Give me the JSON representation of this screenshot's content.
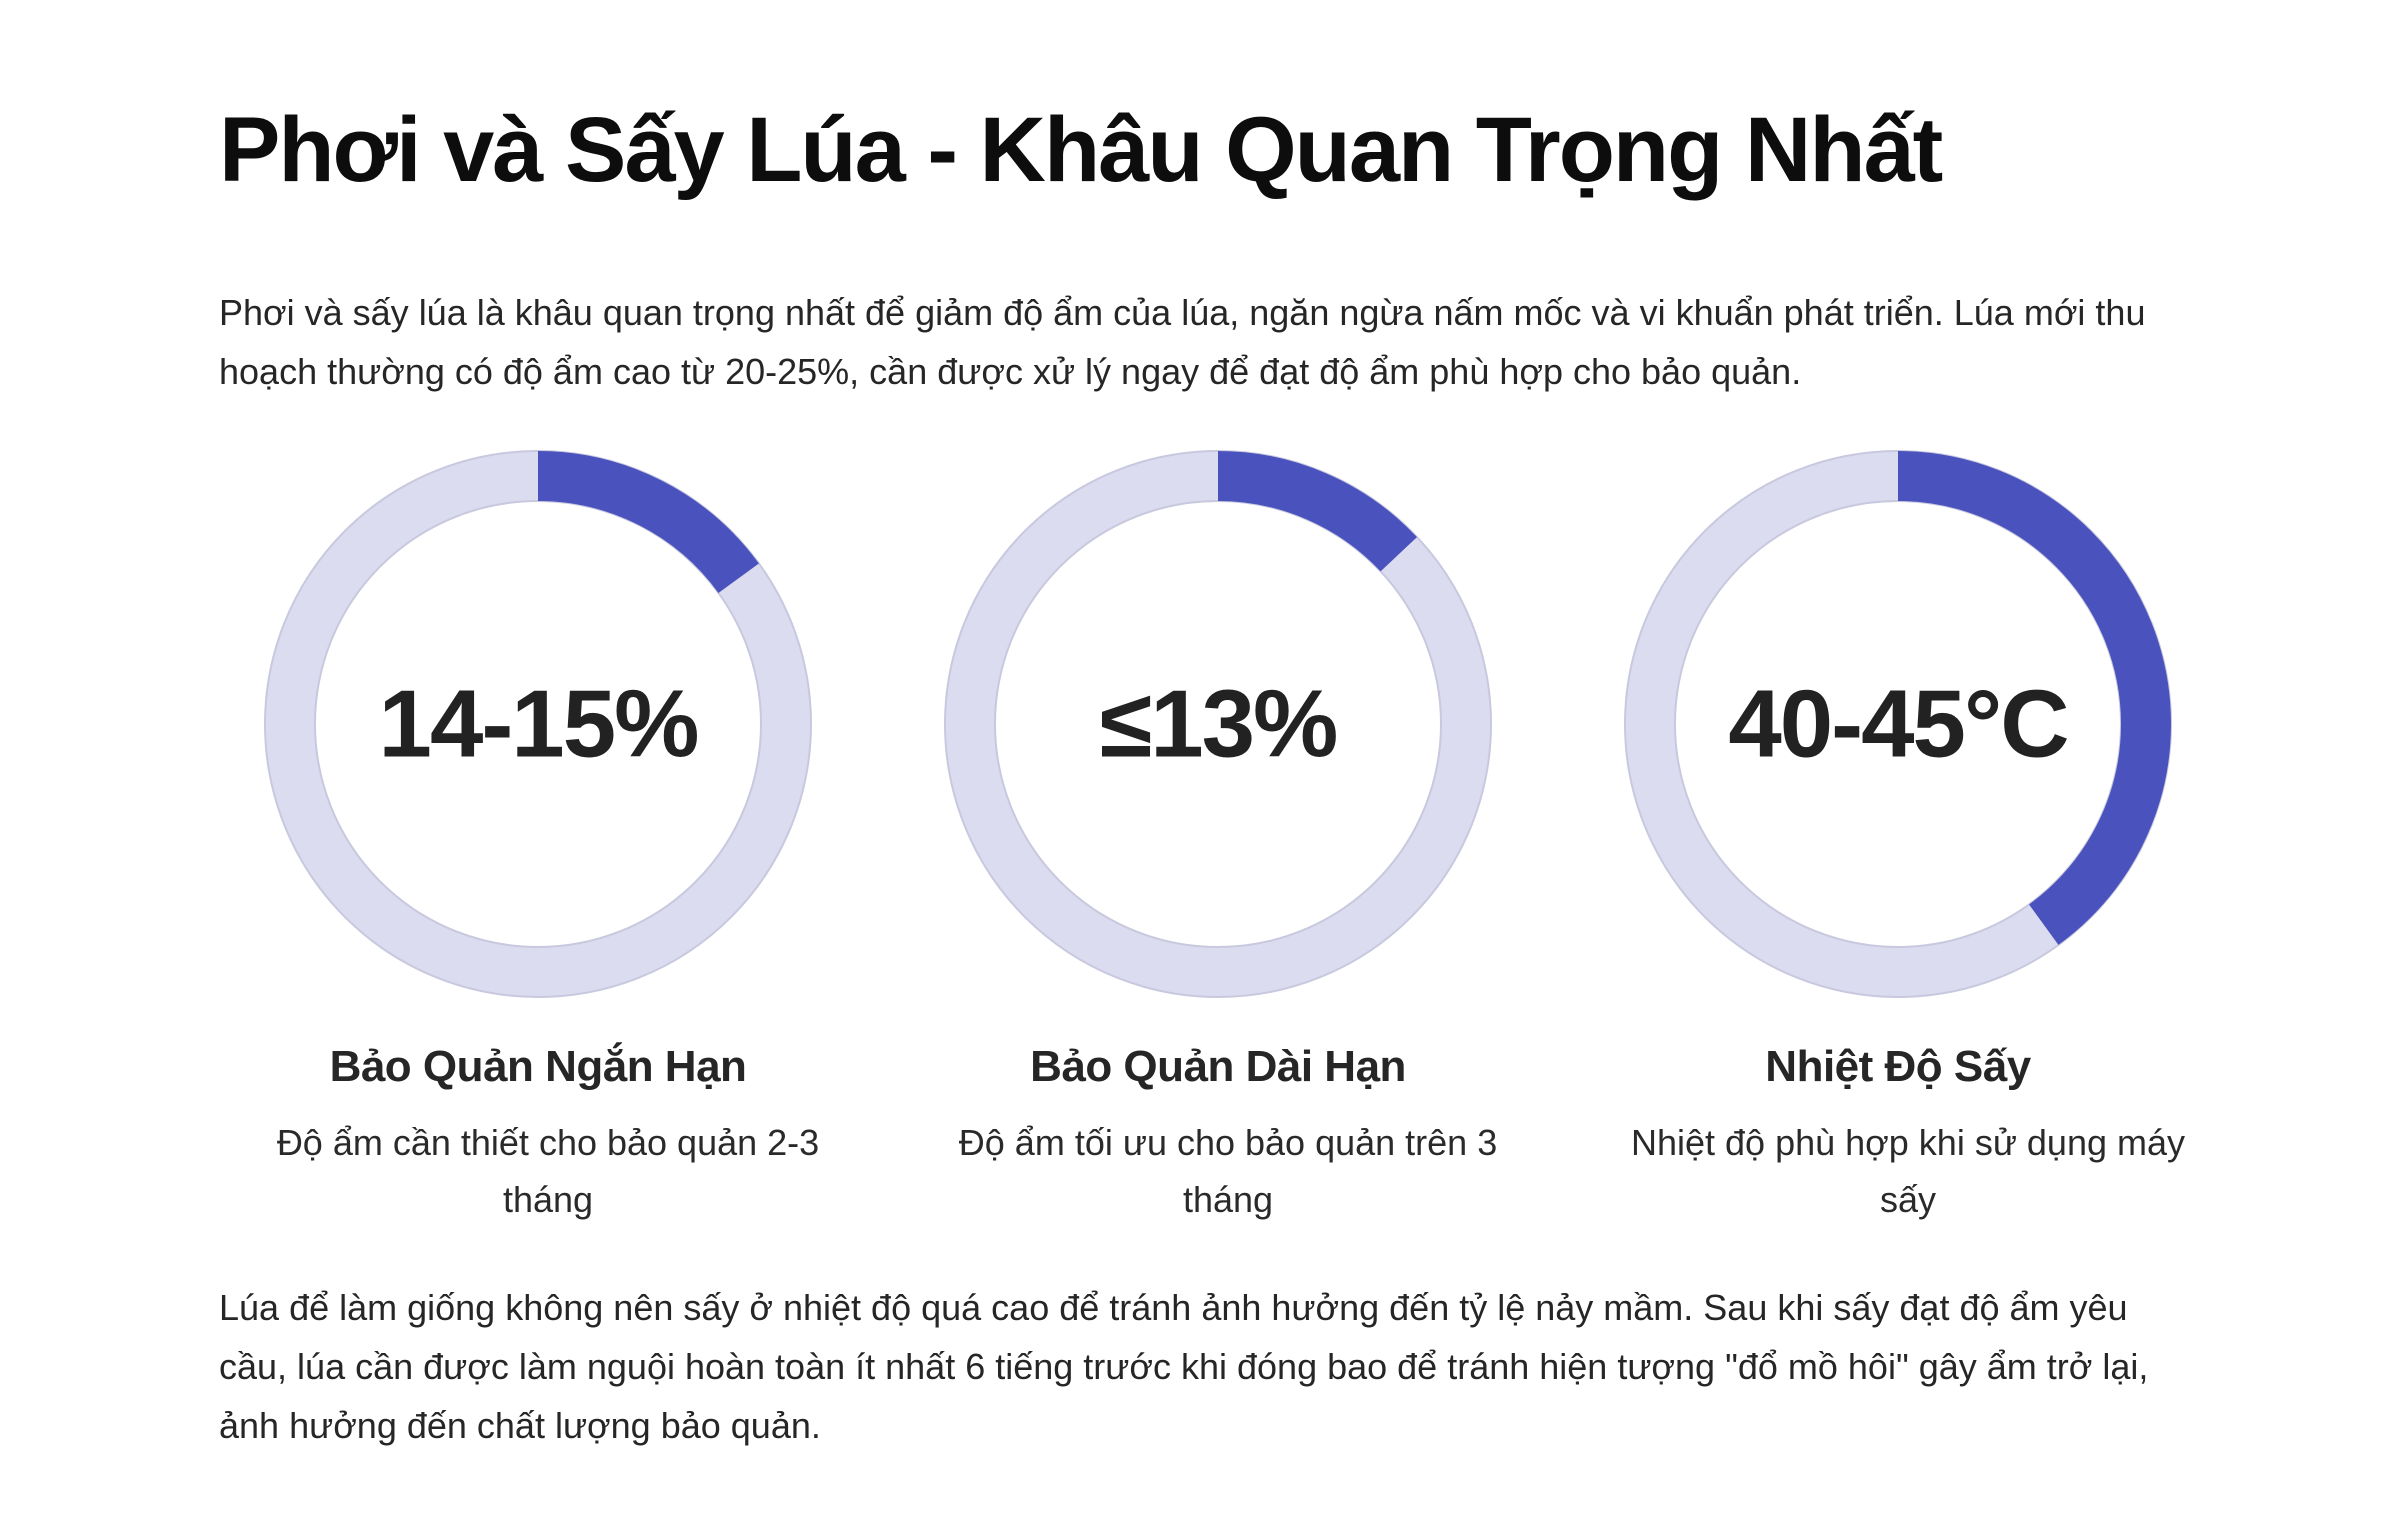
{
  "title": "Phơi và Sấy Lúa - Khâu Quan Trọng Nhất",
  "intro": "Phơi và sấy lúa là khâu quan trọng nhất để giảm độ ẩm của lúa, ngăn ngừa nấm mốc và vi khuẩn phát triển. Lúa mới thu hoạch thường có độ ẩm cao từ 20-25%, cần được xử lý ngay để đạt độ ẩm phù hợp cho bảo quản.",
  "colors": {
    "ring_track": "#dcdcf0",
    "ring_fill": "#4a52bd"
  },
  "metrics": [
    {
      "value": "14-15%",
      "title": "Bảo Quản Ngắn Hạn",
      "description": "Độ ẩm cần thiết cho bảo quản 2-3 tháng",
      "fill_fraction": 0.15
    },
    {
      "value": "≤13%",
      "title": "Bảo Quản Dài Hạn",
      "description": "Độ ẩm tối ưu cho bảo quản trên 3 tháng",
      "fill_fraction": 0.13
    },
    {
      "value": "40-45°C",
      "title": "Nhiệt Độ Sấy",
      "description": "Nhiệt độ phù hợp khi sử dụng máy sấy",
      "fill_fraction": 0.4
    }
  ],
  "outro": "Lúa để làm giống không nên sấy ở nhiệt độ quá cao để tránh ảnh hưởng đến tỷ lệ nảy mầm. Sau khi sấy đạt độ ẩm yêu cầu, lúa cần được làm nguội hoàn toàn ít nhất 6 tiếng trước khi đóng bao để tránh hiện tượng \"đổ mồ hôi\" gây ẩm trở lại, ảnh hưởng đến chất lượng bảo quản."
}
